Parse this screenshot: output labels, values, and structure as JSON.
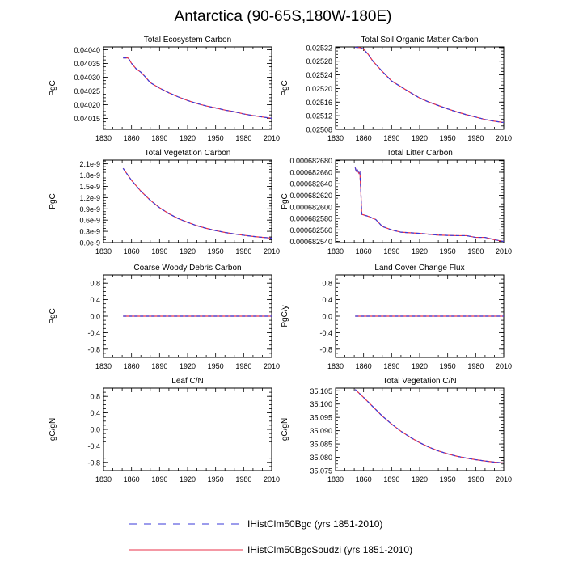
{
  "title": "Antarctica (90-65S,180W-180E)",
  "legend": [
    {
      "label": "IHistClm50Bgc (yrs 1851-2010)",
      "color": "#3a3ad8",
      "dash": "dashed"
    },
    {
      "label": "IHistClm50BgcSoudzi (yrs 1851-2010)",
      "color": "#e8304a",
      "dash": "solid"
    }
  ],
  "chart_data": [
    {
      "type": "line",
      "title": "Total Ecosystem Carbon",
      "ylabel": "PgC",
      "xlim": [
        1830,
        2010
      ],
      "ylim": [
        0.04011,
        0.04041
      ],
      "xticks": [
        1830,
        1860,
        1890,
        1920,
        1950,
        1980,
        2010
      ],
      "yticks": [
        0.04015,
        0.0402,
        0.04025,
        0.0403,
        0.04035,
        0.0404
      ],
      "yticklabels": [
        "0.04015",
        "0.04020",
        "0.04025",
        "0.04030",
        "0.04035",
        "0.04040"
      ],
      "x": [
        1851,
        1856,
        1857,
        1860,
        1865,
        1870,
        1875,
        1880,
        1890,
        1900,
        1910,
        1920,
        1930,
        1940,
        1950,
        1960,
        1970,
        1980,
        1990,
        2000,
        2010
      ],
      "y": [
        0.04037,
        0.04037,
        0.040367,
        0.04035,
        0.04033,
        0.040318,
        0.0403,
        0.04028,
        0.04026,
        0.040243,
        0.040228,
        0.040215,
        0.040204,
        0.040195,
        0.040188,
        0.04018,
        0.040174,
        0.040166,
        0.04016,
        0.040155,
        0.04015
      ]
    },
    {
      "type": "line",
      "title": "Total Soil Organic Matter Carbon",
      "ylabel": "PgC",
      "xlim": [
        1830,
        2010
      ],
      "ylim": [
        0.02508,
        0.025322
      ],
      "xticks": [
        1830,
        1860,
        1890,
        1920,
        1950,
        1980,
        2010
      ],
      "yticks": [
        0.02508,
        0.02512,
        0.02516,
        0.0252,
        0.02524,
        0.02528,
        0.02532
      ],
      "yticklabels": [
        "0.02508",
        "0.02512",
        "0.02516",
        "0.02520",
        "0.02524",
        "0.02528",
        "0.02532"
      ],
      "x": [
        1851,
        1856,
        1860,
        1861,
        1865,
        1870,
        1875,
        1880,
        1890,
        1900,
        1910,
        1920,
        1930,
        1940,
        1950,
        1960,
        1970,
        1980,
        1990,
        2000,
        2010
      ],
      "y": [
        0.025321,
        0.02532,
        0.025316,
        0.025312,
        0.0253,
        0.02528,
        0.025265,
        0.02525,
        0.025222,
        0.025205,
        0.025188,
        0.025172,
        0.02516,
        0.02515,
        0.02514,
        0.025131,
        0.025123,
        0.025116,
        0.025109,
        0.025104,
        0.0251
      ]
    },
    {
      "type": "line",
      "title": "Total Vegetation Carbon",
      "ylabel": "PgC",
      "xlim": [
        1830,
        2010
      ],
      "ylim": [
        0,
        2.2e-09
      ],
      "xticks": [
        1830,
        1860,
        1890,
        1920,
        1950,
        1980,
        2010
      ],
      "yticks": [
        0,
        3e-10,
        6e-10,
        9e-10,
        1.2e-09,
        1.5e-09,
        1.8e-09,
        2.1e-09
      ],
      "yticklabels": [
        "0.0e-9",
        "0.3e-9",
        "0.6e-9",
        "0.9e-9",
        "1.2e-9",
        "1.5e-9",
        "1.8e-9",
        "2.1e-9"
      ],
      "x": [
        1851,
        1860,
        1870,
        1880,
        1890,
        1900,
        1910,
        1920,
        1930,
        1940,
        1950,
        1960,
        1970,
        1980,
        1990,
        2000,
        2010
      ],
      "y": [
        1.98e-09,
        1.66e-09,
        1.37e-09,
        1.13e-09,
        9.3e-10,
        7.7e-10,
        6.4e-10,
        5.4e-10,
        4.5e-10,
        3.8e-10,
        3.2e-10,
        2.7e-10,
        2.3e-10,
        1.95e-10,
        1.65e-10,
        1.4e-10,
        1.2e-10
      ]
    },
    {
      "type": "line",
      "title": "Total Litter Carbon",
      "ylabel": "PgC",
      "xlim": [
        1830,
        2010
      ],
      "ylim": [
        0.000682538,
        0.000682681
      ],
      "xticks": [
        1830,
        1860,
        1890,
        1920,
        1950,
        1980,
        2010
      ],
      "yticks": [
        0.00068254,
        0.00068256,
        0.00068258,
        0.0006826,
        0.00068262,
        0.00068264,
        0.00068266,
        0.00068268
      ],
      "yticklabels": [
        "0.000682540",
        "0.000682560",
        "0.000682580",
        "0.000682600",
        "0.000682620",
        "0.000682640",
        "0.000682660",
        "0.000682680"
      ],
      "x": [
        1851,
        1852,
        1853,
        1855,
        1856,
        1857,
        1858,
        1860,
        1866,
        1870,
        1873,
        1880,
        1890,
        1900,
        1920,
        1940,
        1960,
        1970,
        1980,
        1990,
        2000,
        2010
      ],
      "y": [
        0.000682668,
        0.000682662,
        0.000682665,
        0.000682658,
        0.00068266,
        0.000682629,
        0.000682587,
        0.000682586,
        0.000682583,
        0.00068258,
        0.000682578,
        0.000682566,
        0.00068256,
        0.000682556,
        0.000682554,
        0.000682551,
        0.00068255,
        0.00068255,
        0.000682547,
        0.000682547,
        0.000682543,
        0.00068254
      ]
    },
    {
      "type": "line",
      "title": "Coarse Woody Debris Carbon",
      "ylabel": "PgC",
      "xlim": [
        1830,
        2010
      ],
      "ylim": [
        -1,
        1
      ],
      "xticks": [
        1830,
        1860,
        1890,
        1920,
        1950,
        1980,
        2010
      ],
      "yticks": [
        -0.8,
        -0.4,
        0,
        0.4,
        0.8
      ],
      "yticklabels": [
        "-0.8",
        "-0.4",
        "0.0",
        "0.4",
        "0.8"
      ],
      "x": [
        1851,
        2010
      ],
      "y": [
        0,
        0
      ]
    },
    {
      "type": "line",
      "title": "Land Cover Change Flux",
      "ylabel": "PgC/y",
      "xlim": [
        1830,
        2010
      ],
      "ylim": [
        -1,
        1
      ],
      "xticks": [
        1830,
        1860,
        1890,
        1920,
        1950,
        1980,
        2010
      ],
      "yticks": [
        -0.8,
        -0.4,
        0,
        0.4,
        0.8
      ],
      "yticklabels": [
        "-0.8",
        "-0.4",
        "0.0",
        "0.4",
        "0.8"
      ],
      "x": [
        1851,
        2010
      ],
      "y": [
        0,
        0
      ]
    },
    {
      "type": "line",
      "title": "Leaf C/N",
      "ylabel": "gC/gN",
      "xlim": [
        1830,
        2010
      ],
      "ylim": [
        -1,
        1
      ],
      "xticks": [
        1830,
        1860,
        1890,
        1920,
        1950,
        1980,
        2010
      ],
      "yticks": [
        -0.8,
        -0.4,
        0,
        0.4,
        0.8
      ],
      "yticklabels": [
        "-0.8",
        "-0.4",
        "0.0",
        "0.4",
        "0.8"
      ],
      "x": [],
      "y": []
    },
    {
      "type": "line",
      "title": "Total Vegetation C/N",
      "ylabel": "gC/gN",
      "xlim": [
        1830,
        2010
      ],
      "ylim": [
        35.075,
        35.106
      ],
      "xticks": [
        1830,
        1860,
        1890,
        1920,
        1950,
        1980,
        2010
      ],
      "yticks": [
        35.075,
        35.08,
        35.085,
        35.09,
        35.095,
        35.1,
        35.105
      ],
      "yticklabels": [
        "35.075",
        "35.080",
        "35.085",
        "35.090",
        "35.095",
        "35.100",
        "35.105"
      ],
      "x": [
        1851,
        1860,
        1870,
        1880,
        1890,
        1900,
        1910,
        1920,
        1930,
        1940,
        1950,
        1960,
        1970,
        1980,
        1990,
        2000,
        2010
      ],
      "y": [
        35.1055,
        35.1025,
        35.099,
        35.0955,
        35.0925,
        35.0898,
        35.0875,
        35.0855,
        35.0838,
        35.0824,
        35.0813,
        35.0804,
        35.0797,
        35.0791,
        35.0786,
        35.0782,
        35.0779
      ]
    }
  ]
}
